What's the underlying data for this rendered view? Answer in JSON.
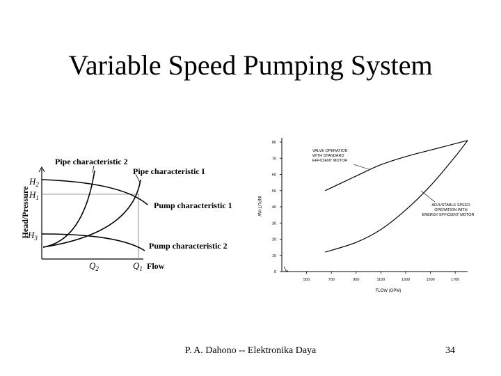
{
  "slide": {
    "title": "Variable Speed Pumping System",
    "footer_author": "P. A. Dahono -- Elektronika Daya",
    "page_number": "34"
  },
  "left_diagram": {
    "y_axis_label": "Head/Pressure",
    "x_axis_label": "Flow",
    "y_ticks": [
      {
        "name": "H2",
        "base": "H",
        "sub": "2"
      },
      {
        "name": "H1",
        "base": "H",
        "sub": "1"
      },
      {
        "name": "H3",
        "base": "H",
        "sub": "3"
      }
    ],
    "x_ticks": [
      {
        "name": "Q2",
        "base": "Q",
        "sub": "2"
      },
      {
        "name": "Q1",
        "base": "Q",
        "sub": "1"
      }
    ],
    "curves": {
      "pipe2": "Pipe characteristic 2",
      "pipe1": "Pipe characteristic I",
      "pump1": "Pump characteristic 1",
      "pump2": "Pump characteristic 2"
    }
  },
  "chart_data": {
    "type": "line",
    "title": "",
    "xlabel": "FLOW (GPM)",
    "ylabel": "INPUT KW",
    "xlim": [
      300,
      1800
    ],
    "ylim": [
      0,
      80
    ],
    "x_ticks": [
      500,
      700,
      900,
      1100,
      1300,
      1500,
      1700
    ],
    "y_ticks": [
      0,
      10,
      20,
      30,
      40,
      50,
      60,
      70,
      80
    ],
    "x_tick_labels": [
      "500",
      "700",
      "900",
      "1100",
      "1300",
      "1500",
      "1700"
    ],
    "y_tick_labels": [
      "0",
      "10",
      "20",
      "30",
      "40",
      "50",
      "60",
      "70",
      "80"
    ],
    "series": [
      {
        "name": "VALVE OPERATION WITH STANDARD EFFICIENT MOTOR",
        "x": [
          650,
          900,
          1100,
          1300,
          1500,
          1700,
          1800
        ],
        "y": [
          50,
          59,
          66,
          71,
          75,
          79,
          81
        ]
      },
      {
        "name": "ADJUSTABLE SPEED OPERATION WITH ENERGY EFFICIENT MOTOR",
        "x": [
          650,
          900,
          1100,
          1300,
          1500,
          1700,
          1800
        ],
        "y": [
          12,
          18,
          26,
          38,
          53,
          71,
          81
        ]
      }
    ],
    "annotations": [
      {
        "id": "valve",
        "lines": [
          "VALVE OPERATION",
          "WITH STANDARD",
          "EFFICIENT MOTOR"
        ]
      },
      {
        "id": "adjustable",
        "lines": [
          "ADJUSTABLE SPEED",
          "OPERATION WITH",
          "ENERGY EFFICIENT MOTOR"
        ]
      }
    ]
  }
}
